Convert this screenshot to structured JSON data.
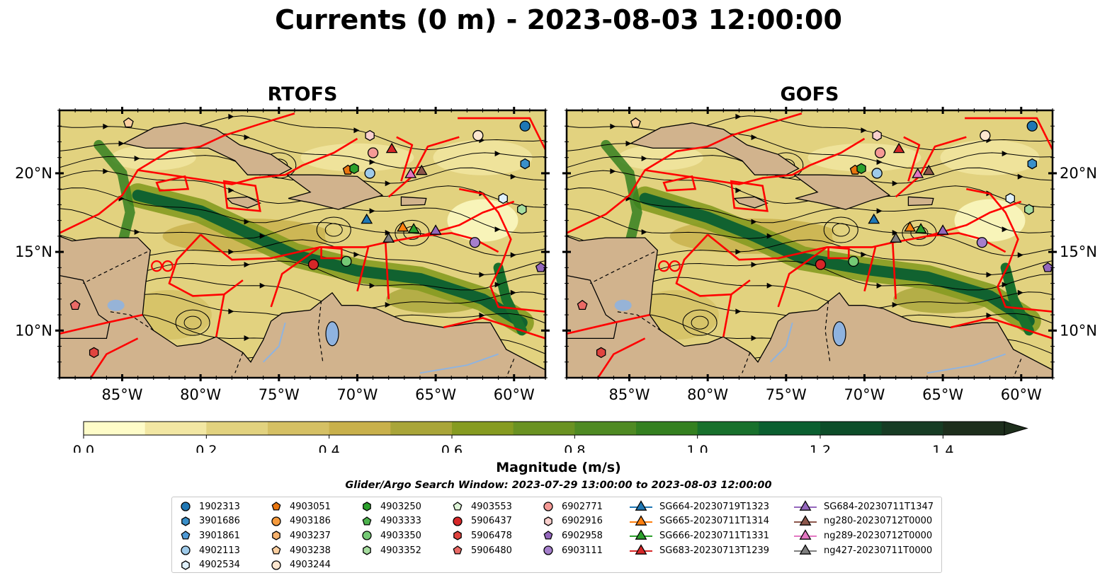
{
  "title": "Currents (0 m) - 2023-08-03 12:00:00",
  "panels": [
    {
      "name": "RTOFS"
    },
    {
      "name": "GOFS"
    }
  ],
  "axes": {
    "lat_ticks": [
      "20°N",
      "15°N",
      "10°N"
    ],
    "lon_ticks": [
      "85°W",
      "80°W",
      "75°W",
      "70°W",
      "65°W",
      "60°W"
    ],
    "extent": {
      "lon": [
        -89,
        -58
      ],
      "lat": [
        7,
        24
      ]
    }
  },
  "colorbar": {
    "label": "Magnitude (m/s)",
    "ticks": [
      "0.0",
      "0.2",
      "0.4",
      "0.6",
      "0.8",
      "1.0",
      "1.2",
      "1.4"
    ],
    "range": [
      0,
      1.5
    ],
    "colors": [
      "#fefcc8",
      "#f2e7a3",
      "#e2d27f",
      "#d5c064",
      "#c8b04b",
      "#a9a539",
      "#869b21",
      "#6a9222",
      "#4f8a23",
      "#348020",
      "#18702c",
      "#0b5f30",
      "#0d4d29",
      "#173c24",
      "#1d2e1c"
    ],
    "extend": "max"
  },
  "search_window": "Glider/Argo Search Window: 2023-07-29 13:00:00 to 2023-08-03 12:00:00",
  "legend": {
    "columns": [
      [
        {
          "label": "1902313",
          "marker": "circle",
          "color": "#1f77b4"
        },
        {
          "label": "3901686",
          "marker": "hexagon",
          "color": "#3a8fc9"
        },
        {
          "label": "3901861",
          "marker": "pentagon",
          "color": "#4f9ad6"
        },
        {
          "label": "4902113",
          "marker": "circle",
          "color": "#9ecae9"
        },
        {
          "label": "4902534",
          "marker": "hexagon",
          "color": "#dff0fb"
        }
      ],
      [
        {
          "label": "4903051",
          "marker": "pentagon",
          "color": "#e8750f"
        },
        {
          "label": "4903186",
          "marker": "circle",
          "color": "#f59a3c"
        },
        {
          "label": "4903237",
          "marker": "hexagon",
          "color": "#f8b36e"
        },
        {
          "label": "4903238",
          "marker": "pentagon",
          "color": "#fbcfa0"
        },
        {
          "label": "4903244",
          "marker": "circle",
          "color": "#fde6cf"
        }
      ],
      [
        {
          "label": "4903250",
          "marker": "hexagon",
          "color": "#2ca02c"
        },
        {
          "label": "4903333",
          "marker": "pentagon",
          "color": "#4db34d"
        },
        {
          "label": "4903350",
          "marker": "circle",
          "color": "#75c975"
        },
        {
          "label": "4903352",
          "marker": "hexagon",
          "color": "#a6dd9f"
        }
      ],
      [
        {
          "label": "4903553",
          "marker": "pentagon",
          "color": "#dff5d8"
        },
        {
          "label": "5906437",
          "marker": "circle",
          "color": "#d62728"
        },
        {
          "label": "5906478",
          "marker": "hexagon",
          "color": "#e0443f"
        },
        {
          "label": "5906480",
          "marker": "pentagon",
          "color": "#ea6a66"
        }
      ],
      [
        {
          "label": "6902771",
          "marker": "circle",
          "color": "#f59a96"
        },
        {
          "label": "6902916",
          "marker": "hexagon",
          "color": "#fbd0cd"
        },
        {
          "label": "6902958",
          "marker": "pentagon",
          "color": "#9467bd"
        },
        {
          "label": "6903111",
          "marker": "circle",
          "color": "#a57fcc"
        }
      ],
      [
        {
          "label": "SG664-20230719T1323",
          "marker": "triangle-line",
          "color": "#1f77b4"
        },
        {
          "label": "SG665-20230711T1314",
          "marker": "triangle-line",
          "color": "#ff7f0e"
        },
        {
          "label": "SG666-20230711T1331",
          "marker": "triangle-line",
          "color": "#2ca02c"
        },
        {
          "label": "SG683-20230713T1239",
          "marker": "triangle-line",
          "color": "#d62728"
        }
      ],
      [
        {
          "label": "SG684-20230711T1347",
          "marker": "triangle-line",
          "color": "#9467bd"
        },
        {
          "label": "ng280-20230712T0000",
          "marker": "triangle-line",
          "color": "#8c564b"
        },
        {
          "label": "ng289-20230712T0000",
          "marker": "triangle-line",
          "color": "#e377c2"
        },
        {
          "label": "ng427-20230711T0000",
          "marker": "triangle-line",
          "color": "#7f7f7f"
        }
      ]
    ]
  },
  "map_markers": [
    {
      "id": "1902313",
      "marker": "circle",
      "color": "#1f77b4",
      "lon": -59.3,
      "lat": 23.0
    },
    {
      "id": "3901686",
      "marker": "hexagon",
      "color": "#3a8fc9",
      "lon": -59.3,
      "lat": 20.6
    },
    {
      "id": "4903051",
      "marker": "pentagon",
      "color": "#e8750f",
      "lon": -70.6,
      "lat": 20.2
    },
    {
      "id": "4903250",
      "marker": "hexagon",
      "color": "#2ca02c",
      "lon": -70.2,
      "lat": 20.3
    },
    {
      "id": "4902113",
      "marker": "circle",
      "color": "#9ecae9",
      "lon": -69.2,
      "lat": 20.0
    },
    {
      "id": "6902771",
      "marker": "circle",
      "color": "#f59a96",
      "lon": -69.0,
      "lat": 21.3
    },
    {
      "id": "6902916",
      "marker": "hexagon",
      "color": "#fbd0cd",
      "lon": -69.2,
      "lat": 22.4
    },
    {
      "id": "4903244",
      "marker": "circle",
      "color": "#fde6cf",
      "lon": -62.3,
      "lat": 22.4
    },
    {
      "id": "4902534",
      "marker": "hexagon",
      "color": "#dff0fb",
      "lon": -60.7,
      "lat": 18.4
    },
    {
      "id": "4903352",
      "marker": "hexagon",
      "color": "#a6dd9f",
      "lon": -59.5,
      "lat": 17.7
    },
    {
      "id": "6903111",
      "marker": "circle",
      "color": "#a57fcc",
      "lon": -62.5,
      "lat": 15.6
    },
    {
      "id": "6902958",
      "marker": "pentagon",
      "color": "#9467bd",
      "lon": -58.3,
      "lat": 14.0
    },
    {
      "id": "5906437",
      "marker": "circle",
      "color": "#d62728",
      "lon": -72.8,
      "lat": 14.2
    },
    {
      "id": "4903350",
      "marker": "circle",
      "color": "#75c975",
      "lon": -70.7,
      "lat": 14.4
    },
    {
      "id": "5906480",
      "marker": "pentagon",
      "color": "#ea6a66",
      "lon": -88.0,
      "lat": 11.6
    },
    {
      "id": "5906478",
      "marker": "hexagon",
      "color": "#e0443f",
      "lon": -86.8,
      "lat": 8.6
    },
    {
      "id": "4903238",
      "marker": "pentagon",
      "color": "#fbcfa0",
      "lon": -84.6,
      "lat": 23.2
    },
    {
      "id": "SG664",
      "marker": "triangle",
      "color": "#1f77b4",
      "lon": -69.4,
      "lat": 17.1
    },
    {
      "id": "SG665",
      "marker": "triangle",
      "color": "#ff7f0e",
      "lon": -67.1,
      "lat": 16.6
    },
    {
      "id": "SG666",
      "marker": "triangle",
      "color": "#2ca02c",
      "lon": -66.4,
      "lat": 16.5
    },
    {
      "id": "SG683",
      "marker": "triangle",
      "color": "#d62728",
      "lon": -67.8,
      "lat": 21.6
    },
    {
      "id": "SG684",
      "marker": "triangle",
      "color": "#9467bd",
      "lon": -65.0,
      "lat": 16.4
    },
    {
      "id": "ng280",
      "marker": "triangle",
      "color": "#8c564b",
      "lon": -65.9,
      "lat": 20.2
    },
    {
      "id": "ng289",
      "marker": "triangle",
      "color": "#e377c2",
      "lon": -66.6,
      "lat": 20.0
    },
    {
      "id": "ng427",
      "marker": "triangle",
      "color": "#7f7f7f",
      "lon": -68.0,
      "lat": 15.9
    }
  ],
  "colors": {
    "land": "#d1b38d",
    "boundary": "#ff0000",
    "lake": "#8fb3df"
  }
}
